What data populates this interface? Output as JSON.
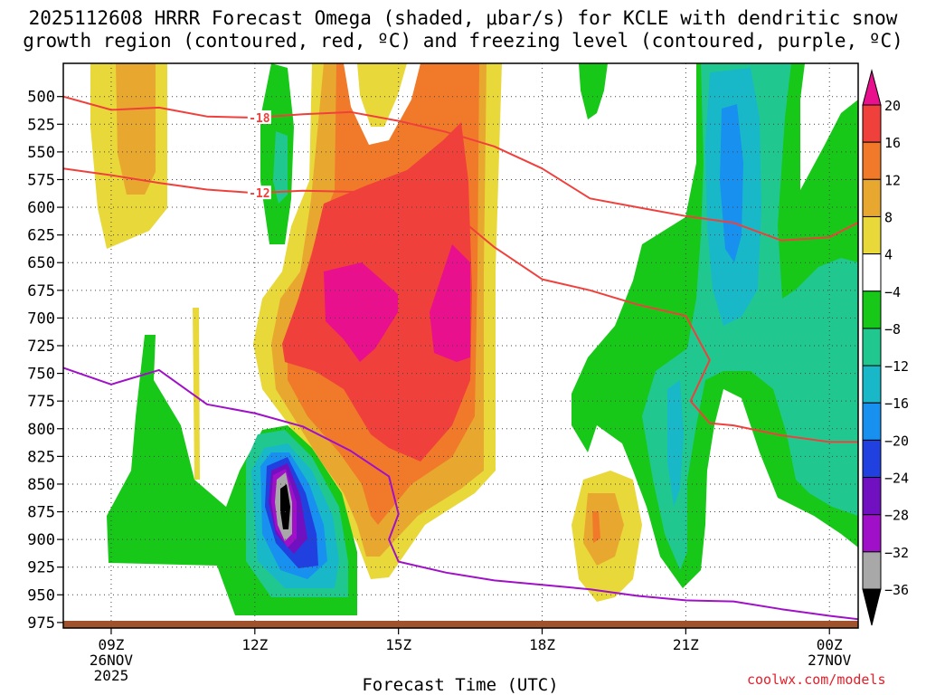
{
  "title": {
    "line1": "2025112608 HRRR Forecast Omega (shaded, μbar/s) for KCLE with dendritic snow",
    "line2": "growth region (contoured, red, ºC) and freezing level (contoured, purple, ºC)"
  },
  "watermark": "coolwx.com/models",
  "chart_data": {
    "type": "contour",
    "title": "2025112608 HRRR Forecast Omega (shaded, μbar/s) for KCLE with dendritic snow growth region (contoured, red, ºC) and freezing level (contoured, purple, ºC)",
    "xlabel": "Forecast Time (UTC)",
    "ylabel": "Pressure (mb)",
    "x_range_hours": [
      8,
      24.6
    ],
    "ylim": [
      980,
      470
    ],
    "y_ticks": [
      500,
      525,
      550,
      575,
      600,
      625,
      650,
      675,
      700,
      725,
      750,
      775,
      800,
      825,
      850,
      875,
      900,
      925,
      950,
      975
    ],
    "x_ticks": [
      {
        "hour": 9,
        "lines": [
          "09Z",
          "26NOV",
          "2025"
        ]
      },
      {
        "hour": 12,
        "lines": [
          "12Z"
        ]
      },
      {
        "hour": 15,
        "lines": [
          "15Z"
        ]
      },
      {
        "hour": 18,
        "lines": [
          "18Z"
        ]
      },
      {
        "hour": 21,
        "lines": [
          "21Z"
        ]
      },
      {
        "hour": 24,
        "lines": [
          "00Z",
          "27NOV"
        ]
      }
    ],
    "grid": true,
    "colorbar": {
      "tick_labels": [
        "20",
        "16",
        "12",
        "8",
        "4",
        "−4",
        "−8",
        "−12",
        "−16",
        "−20",
        "−24",
        "−28",
        "−32",
        "−36"
      ],
      "bins_top_to_bottom": [
        {
          "range": [
            16,
            20
          ],
          "color": "#f0403c"
        },
        {
          "range": [
            12,
            16
          ],
          "color": "#f07a2a"
        },
        {
          "range": [
            8,
            12
          ],
          "color": "#e8a830"
        },
        {
          "range": [
            4,
            8
          ],
          "color": "#e8d83a"
        },
        {
          "range": [
            -4,
            4
          ],
          "color": "#ffffff"
        },
        {
          "range": [
            -8,
            -4
          ],
          "color": "#18c818"
        },
        {
          "range": [
            -12,
            -8
          ],
          "color": "#20c890"
        },
        {
          "range": [
            -16,
            -12
          ],
          "color": "#18b8c8"
        },
        {
          "range": [
            -20,
            -16
          ],
          "color": "#1890f0"
        },
        {
          "range": [
            -24,
            -20
          ],
          "color": "#2040e0"
        },
        {
          "range": [
            -28,
            -24
          ],
          "color": "#7010c0"
        },
        {
          "range": [
            -32,
            -28
          ],
          "color": "#a010c8"
        },
        {
          "range": [
            -36,
            -32
          ],
          "color": "#a8a8a8"
        }
      ],
      "over_color": "#e8108c",
      "under_color": "#000000"
    },
    "series": [
      {
        "name": "-18 isotherm (DGZ top)",
        "color": "#f0403c",
        "label": "-18",
        "points": [
          [
            8,
            500
          ],
          [
            9,
            512
          ],
          [
            10,
            510
          ],
          [
            11,
            518
          ],
          [
            12,
            519
          ],
          [
            13,
            516
          ],
          [
            14,
            514
          ],
          [
            15,
            522
          ],
          [
            16,
            532
          ],
          [
            17,
            545
          ],
          [
            18,
            565
          ],
          [
            19,
            592
          ],
          [
            20,
            600
          ],
          [
            21,
            608
          ],
          [
            22,
            614
          ],
          [
            23,
            630
          ],
          [
            24,
            627
          ],
          [
            25,
            605
          ]
        ]
      },
      {
        "name": "-12 isotherm (DGZ bottom)",
        "color": "#f0403c",
        "label": "-12",
        "points": [
          [
            8,
            565
          ],
          [
            9,
            571
          ],
          [
            10,
            578
          ],
          [
            11,
            584
          ],
          [
            12,
            587
          ],
          [
            13,
            585
          ],
          [
            14,
            586
          ],
          [
            15,
            587
          ],
          [
            16,
            600
          ],
          [
            17,
            636
          ],
          [
            18,
            665
          ],
          [
            19,
            675
          ],
          [
            20,
            688
          ],
          [
            21,
            698
          ],
          [
            21.5,
            738
          ],
          [
            21.1,
            775
          ],
          [
            21.5,
            795
          ],
          [
            22,
            797
          ],
          [
            23,
            806
          ],
          [
            24,
            812
          ],
          [
            25,
            812
          ]
        ]
      },
      {
        "name": "0 ºC freezing level",
        "color": "#a010c8",
        "points": [
          [
            8,
            745
          ],
          [
            9,
            760
          ],
          [
            10,
            747
          ],
          [
            11,
            778
          ],
          [
            12,
            786
          ],
          [
            13,
            798
          ],
          [
            14,
            820
          ],
          [
            14.8,
            843
          ],
          [
            15,
            877
          ],
          [
            14.8,
            900
          ],
          [
            15,
            920
          ],
          [
            16,
            930
          ],
          [
            17,
            937
          ],
          [
            18,
            941
          ],
          [
            19,
            945
          ],
          [
            20,
            951
          ],
          [
            21,
            955
          ],
          [
            22,
            956
          ],
          [
            23,
            963
          ],
          [
            24,
            969
          ],
          [
            25,
            974
          ]
        ]
      }
    ]
  }
}
